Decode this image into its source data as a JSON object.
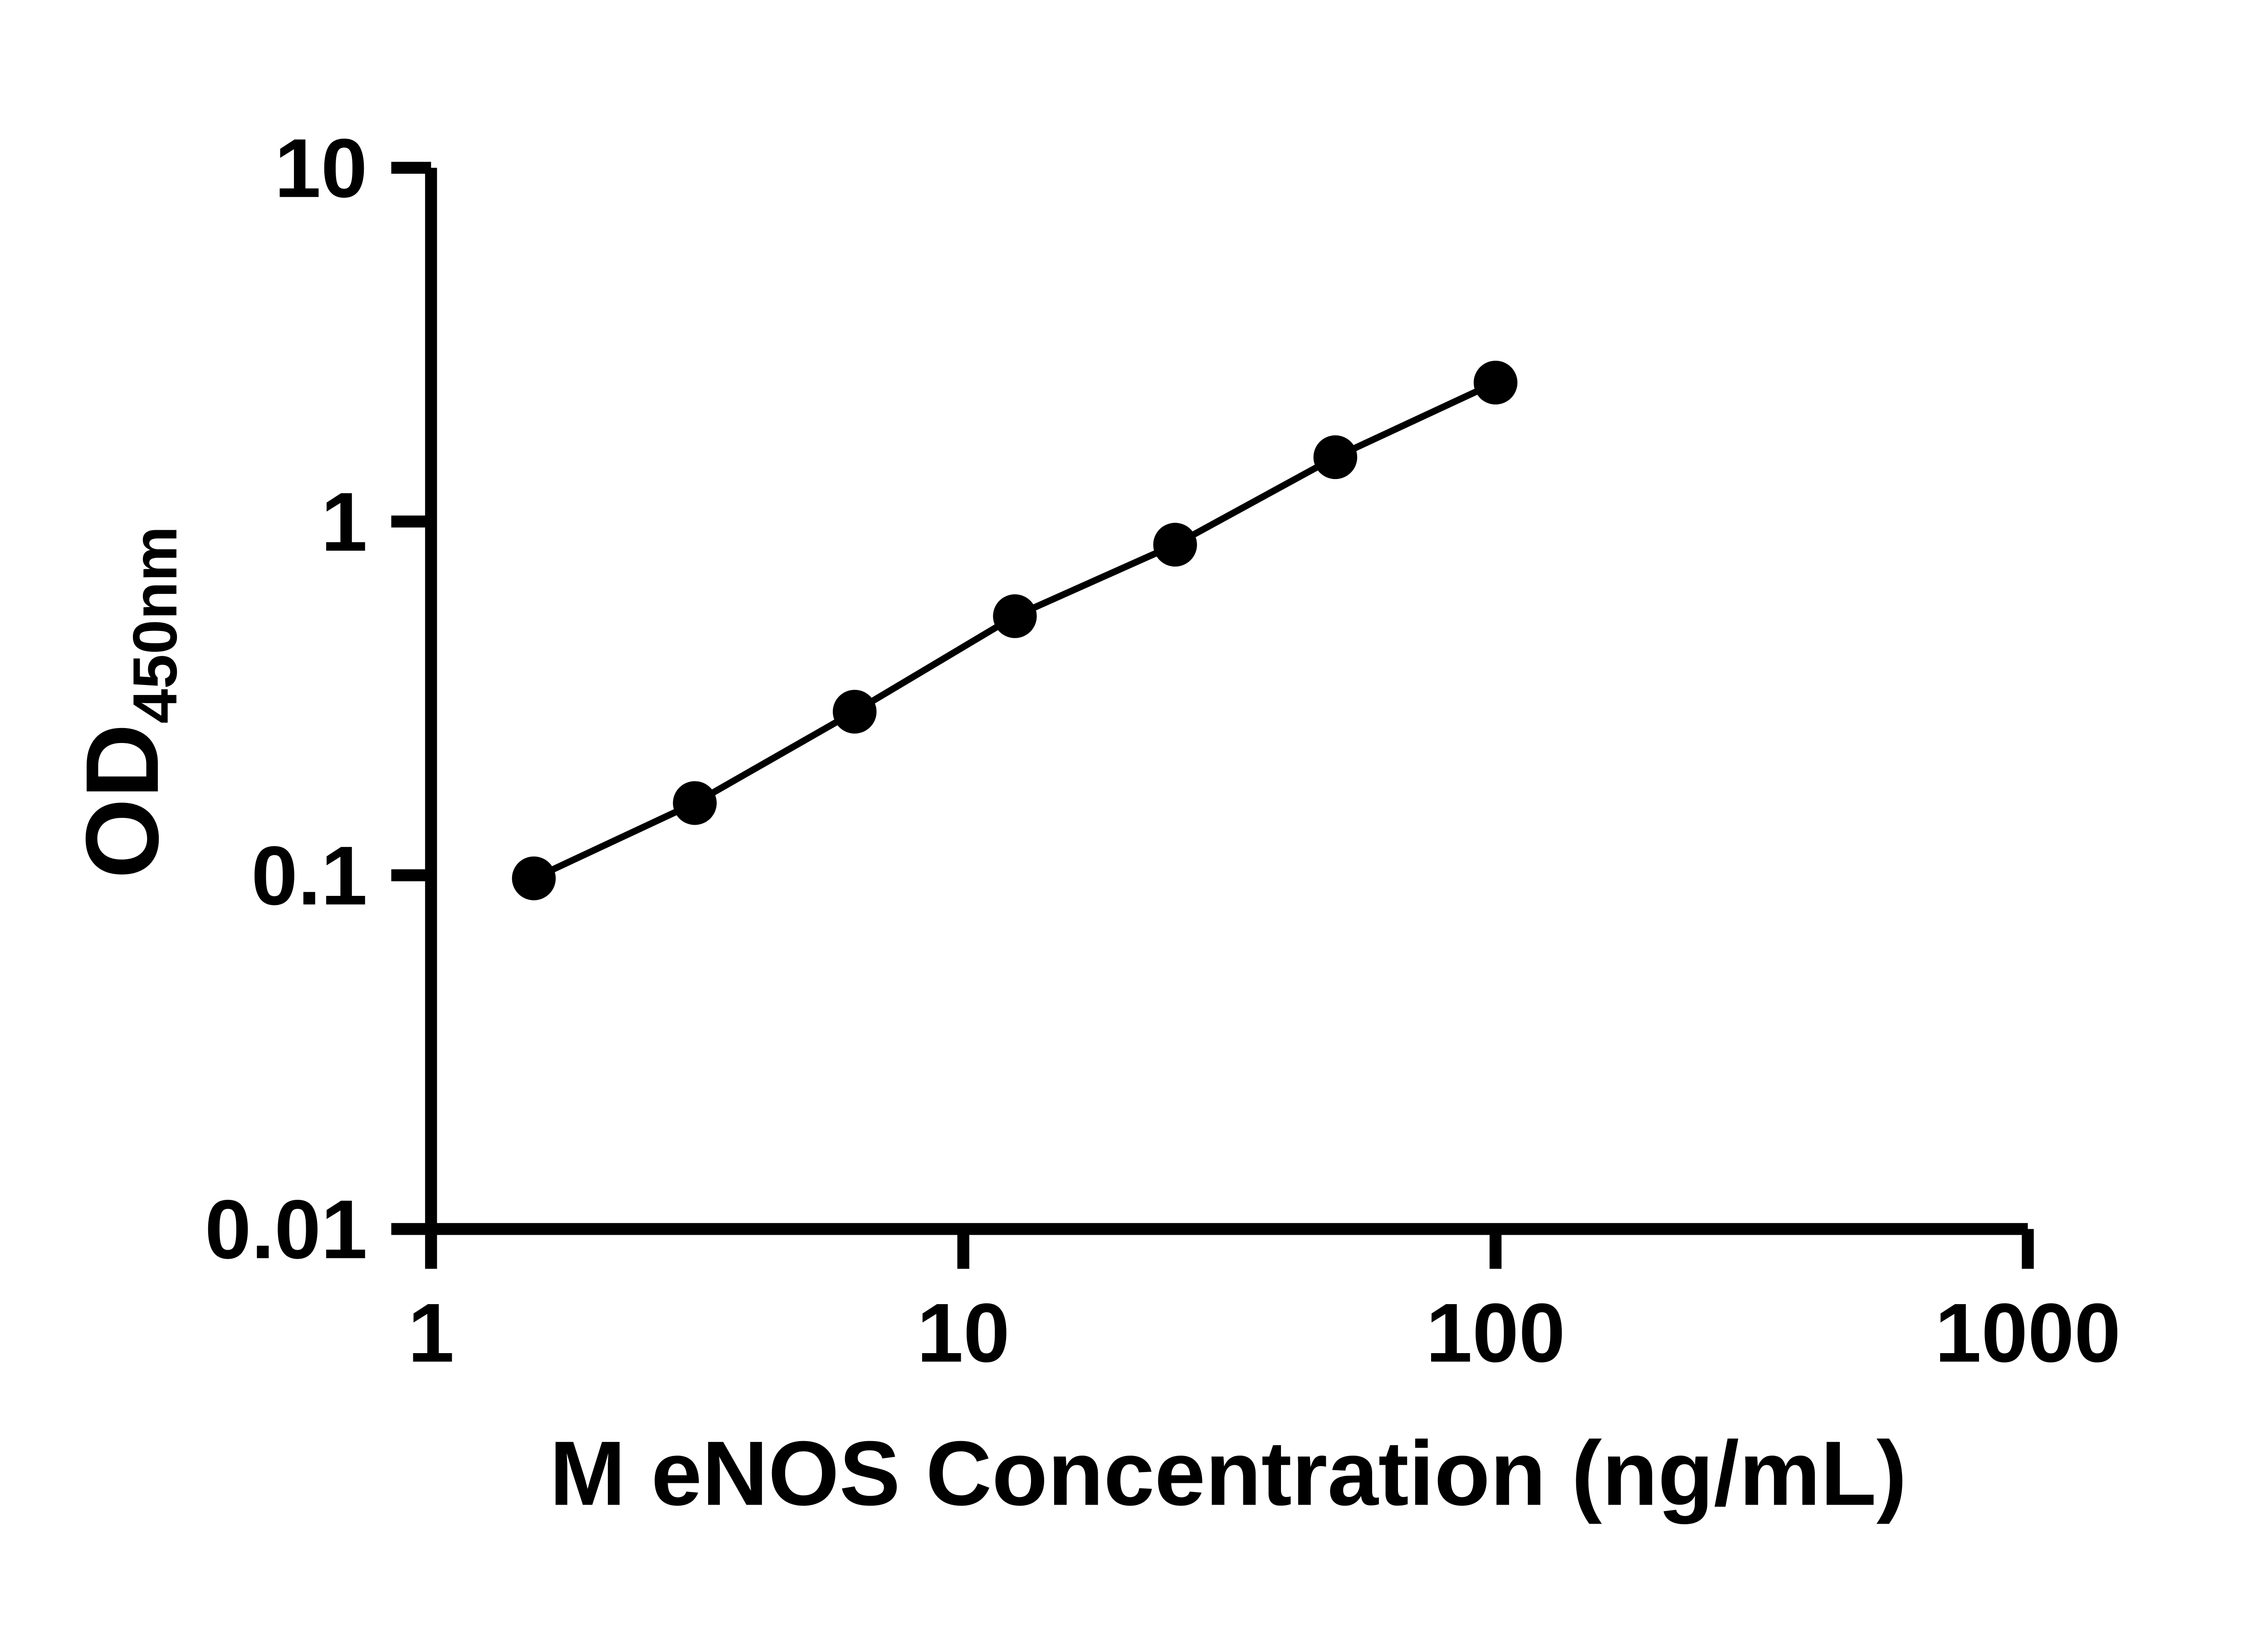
{
  "figure": {
    "background_color": "#ffffff",
    "ink_color": "#000000"
  },
  "chart_data": {
    "type": "line",
    "title": "",
    "xlabel": "M eNOS Concentration (ng/mL)",
    "ylabel_main": "OD",
    "ylabel_sub": "450nm",
    "x_scale": "log10",
    "y_scale": "log10",
    "xlim": [
      1,
      1000
    ],
    "ylim": [
      0.01,
      10
    ],
    "x_ticks": [
      1,
      10,
      100,
      1000
    ],
    "x_tick_labels": [
      "1",
      "10",
      "100",
      "1000"
    ],
    "y_ticks": [
      0.01,
      0.1,
      1,
      10
    ],
    "y_tick_labels": [
      "0.01",
      "0.1",
      "1",
      "10"
    ],
    "grid": false,
    "legend": "none",
    "series": [
      {
        "marker": "filled-circle",
        "line_style": "solid",
        "color": "#000000",
        "x": [
          1.56,
          3.13,
          6.25,
          12.5,
          25,
          50,
          100
        ],
        "y": [
          0.098,
          0.16,
          0.29,
          0.54,
          0.86,
          1.52,
          2.47
        ]
      }
    ]
  }
}
